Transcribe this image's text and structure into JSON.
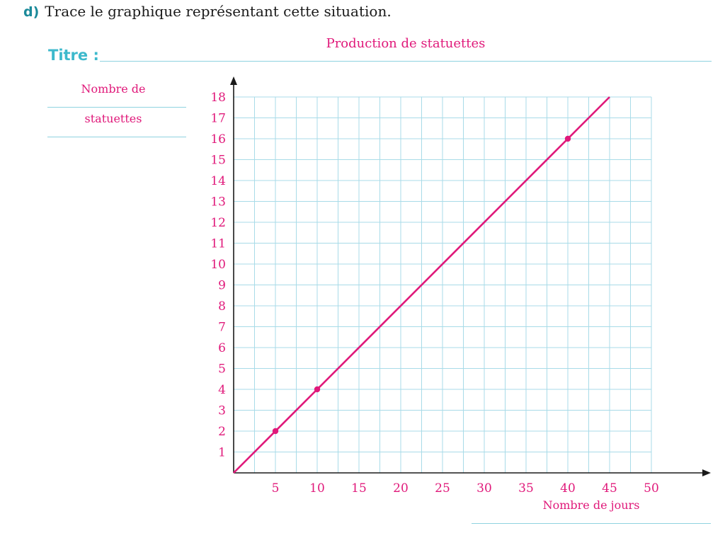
{
  "question": {
    "number": "d)",
    "text": "Trace le graphique représentant cette situation."
  },
  "title_label": "Titre :",
  "chart_data": {
    "type": "line",
    "title": "Production de statuettes",
    "xlabel": "Nombre de jours",
    "ylabel_lines": [
      "Nombre de",
      "statuettes"
    ],
    "xlim": [
      0,
      50
    ],
    "ylim": [
      0,
      18
    ],
    "x_ticks": [
      5,
      10,
      15,
      20,
      25,
      30,
      35,
      40,
      45,
      50
    ],
    "y_ticks": [
      1,
      2,
      3,
      4,
      5,
      6,
      7,
      8,
      9,
      10,
      11,
      12,
      13,
      14,
      15,
      16,
      17,
      18
    ],
    "grid": true,
    "series": [
      {
        "x": [
          0,
          45
        ],
        "y": [
          0,
          18
        ]
      }
    ],
    "points": [
      {
        "x": 5,
        "y": 2
      },
      {
        "x": 10,
        "y": 4
      },
      {
        "x": 40,
        "y": 16
      }
    ]
  },
  "colors": {
    "accent": "#e0197a",
    "grid": "#a8dbe8",
    "label_teal": "#3db9cc",
    "axis": "#1a1a1a"
  }
}
